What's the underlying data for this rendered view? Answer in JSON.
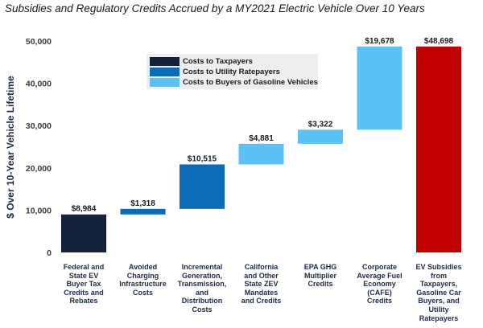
{
  "title": "Subsidies and Regulatory Credits Accrued by a MY2021 Electric Vehicle Over 10 Years",
  "legend": [
    {
      "label": "Costs to Taxpayers",
      "color": "#14213d"
    },
    {
      "label": "Costs to Utility Ratepayers",
      "color": "#0a6cb8"
    },
    {
      "label": "Costs to Buyers of Gasoline Vehicles",
      "color": "#5bc2f5"
    }
  ],
  "chart_data": {
    "type": "bar",
    "subtype": "waterfall",
    "title": "Subsidies and Regulatory Credits Accrued by a MY2021 Electric Vehicle Over 10 Years",
    "ylabel": "$ Over 10-Year Vehicle Lifetime",
    "xlabel": "",
    "ylim": [
      0,
      50000
    ],
    "yticks": [
      0,
      10000,
      20000,
      30000,
      40000,
      50000
    ],
    "ytick_labels": [
      "0",
      "10,000",
      "20,000",
      "30,000",
      "40,000",
      "50,000"
    ],
    "grid": false,
    "legend_position": "top-left",
    "categories": [
      "Federal and State EV Buyer Tax Credits and Rebates",
      "Avoided Charging Infrastructure Costs",
      "Incremental Generation, Transmission, and Distribution Costs",
      "California and Other State ZEV Mandates and Credits",
      "EPA GHG Multiplier Credits",
      "Corporate Average Fuel Economy (CAFE) Credits",
      "EV Subsidies from Taxpayers, Gasoline Car Buyers, and Utility Ratepayers"
    ],
    "category_lines": [
      [
        "Federal and",
        "State EV",
        "Buyer Tax",
        "Credits and",
        "Rebates"
      ],
      [
        "Avoided",
        "Charging",
        "Infrastructure",
        "Costs"
      ],
      [
        "Incremental",
        "Generation,",
        "Transmission,",
        "and",
        "Distribution",
        "Costs"
      ],
      [
        "California",
        "and Other",
        "State ZEV",
        "Mandates",
        "and Credits"
      ],
      [
        "EPA GHG",
        "Multiplier",
        "Credits"
      ],
      [
        "Corporate",
        "Average Fuel",
        "Economy",
        "(CAFE)",
        "Credits"
      ],
      [
        "EV Subsidies from",
        "Taxpayers,",
        "Gasoline Car",
        "Buyers, and",
        "Utility",
        "Ratepayers"
      ]
    ],
    "values": [
      8984,
      1318,
      10515,
      4881,
      3322,
      19678,
      48698
    ],
    "value_labels": [
      "$8,984",
      "$1,318",
      "$10,515",
      "$4,881",
      "$3,322",
      "$19,678",
      "$48,698"
    ],
    "bar_types": [
      "increment",
      "increment",
      "increment",
      "increment",
      "increment",
      "increment",
      "total"
    ],
    "colors": [
      "#14213d",
      "#0a6cb8",
      "#0a6cb8",
      "#5bc2f5",
      "#5bc2f5",
      "#5bc2f5",
      "#c00000"
    ]
  }
}
